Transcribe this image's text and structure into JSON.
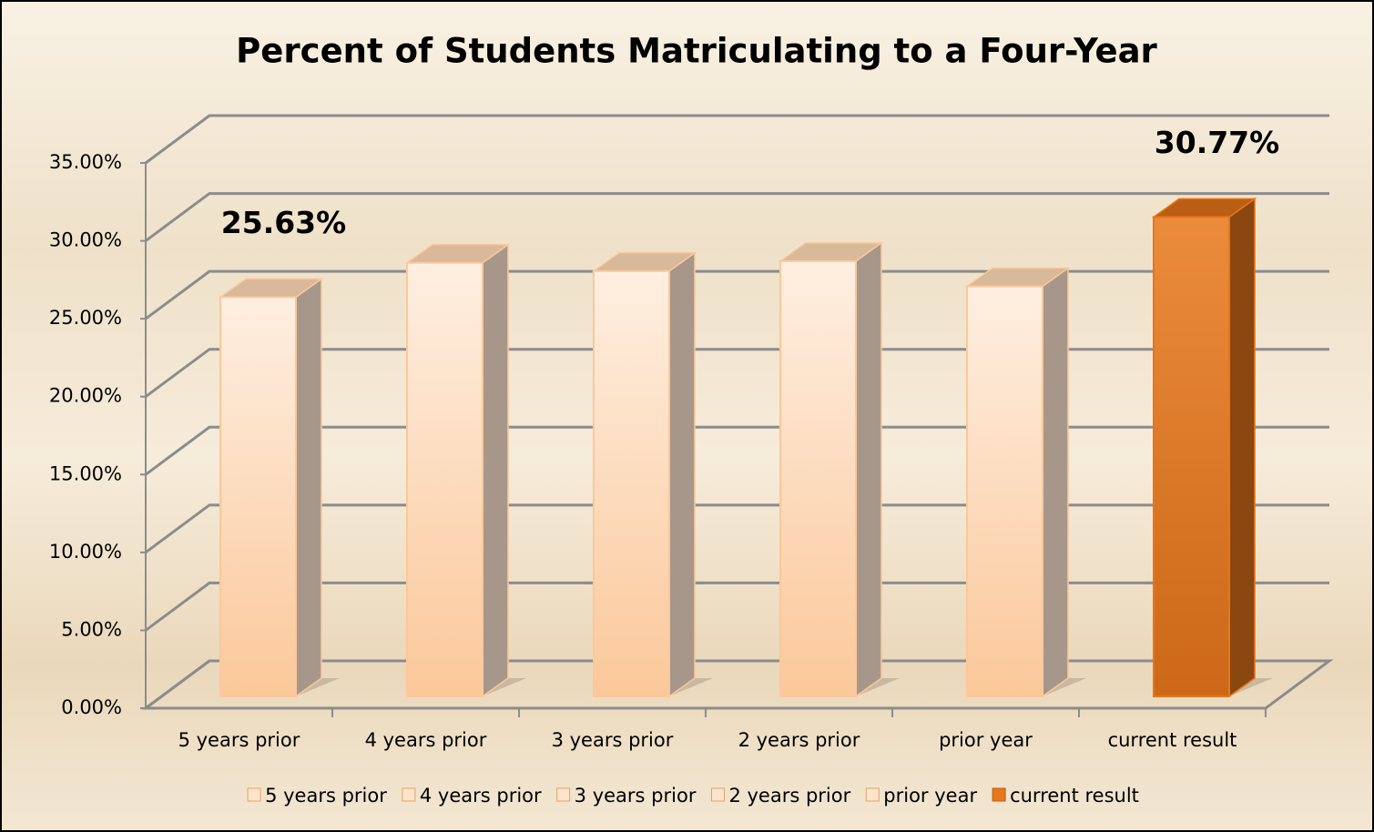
{
  "chart_data": {
    "type": "bar3d",
    "title": "Percent of Students Matriculating to a Four-Year",
    "categories": [
      "5 years prior",
      "4 years prior",
      "3 years prior",
      "2 years prior",
      "prior year",
      "current result"
    ],
    "values": [
      25.63,
      27.83,
      27.3,
      27.94,
      26.32,
      30.77
    ],
    "value_labels": [
      "25.63%",
      null,
      null,
      null,
      null,
      "30.77%"
    ],
    "colors": [
      "#fbc89a",
      "#fbc89a",
      "#fbc89a",
      "#fbc89a",
      "#fbc89a",
      "#e8761a"
    ],
    "ylim": [
      0,
      35
    ],
    "yticks": [
      {
        "value": 0,
        "label": "0.00%"
      },
      {
        "value": 5,
        "label": "5.00%"
      },
      {
        "value": 10,
        "label": "10.00%"
      },
      {
        "value": 15,
        "label": "15.00%"
      },
      {
        "value": 20,
        "label": "20.00%"
      },
      {
        "value": 25,
        "label": "25.00%"
      },
      {
        "value": 30,
        "label": "30.00%"
      },
      {
        "value": 35,
        "label": "35.00%"
      }
    ],
    "grid": true,
    "legend": "bottom"
  }
}
